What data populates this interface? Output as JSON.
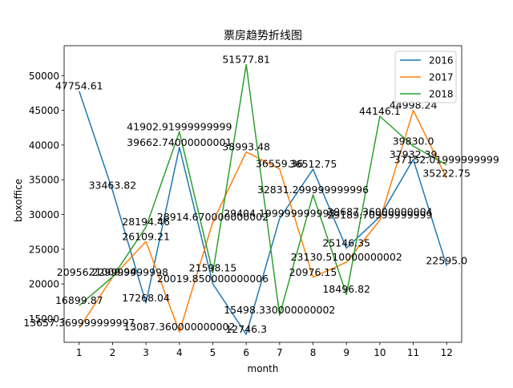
{
  "chart_data": {
    "type": "line",
    "title": "票房趋势折线图",
    "xlabel": "month",
    "ylabel": "boxoffice",
    "x": [
      1,
      2,
      3,
      4,
      5,
      6,
      7,
      8,
      9,
      10,
      11,
      12
    ],
    "xlim": [
      0.55,
      12.45
    ],
    "ylim": [
      11600,
      54300
    ],
    "yticks": [
      15000,
      20000,
      25000,
      30000,
      35000,
      40000,
      45000,
      50000
    ],
    "legend_position": "top-right",
    "grid": false,
    "series": [
      {
        "name": "2016",
        "color": "#1f77b4",
        "values": [
          47754.61,
          33463.82,
          17268.04,
          39662.74000000001,
          20019.850000000006,
          12746.3,
          29404.199999999993,
          36512.75,
          25146.35,
          29687.36000000004,
          37932.39,
          22595.0
        ],
        "labels": [
          "47754.61",
          "33463.82",
          "17268.04",
          "39662.74000000001",
          "20019.850000000006",
          "12746.3",
          "29404.199999999993",
          "36512.75",
          "25146.35",
          "29687.36000000004",
          "37932.39",
          "22595.0"
        ]
      },
      {
        "name": "2017",
        "color": "#ff7f0e",
        "values": [
          13657.369999999997,
          20956.23,
          26109.21,
          13087.360000000002,
          28914.670000000002,
          38993.48,
          36559.36,
          20976.15,
          23130.510000000002,
          29189.70999999999,
          44998.24,
          35222.75
        ],
        "labels": [
          "13657.369999999997",
          "20956.229999999998",
          "26109.21",
          "13087.360000000002",
          "28914.670000000002",
          "38993.48",
          "36559.36",
          "20976.15",
          "23130.510000000002",
          "29189.70999999999",
          "44998.24",
          "35222.75"
        ]
      },
      {
        "name": "2018",
        "color": "#2ca02c",
        "values": [
          16899.87,
          21009.94,
          28194.46,
          41902.91999999999,
          21598.15,
          51577.81,
          15498.330000000002,
          32831.299999999996,
          18496.82,
          44146.1,
          39830.0,
          37152.01999999999
        ],
        "labels": [
          "16899.87",
          "21009.94",
          "28194.46",
          "41902.91999999999",
          "21598.15",
          "51577.81",
          "15498.330000000002",
          "32831.299999999996",
          "18496.82",
          "44146.1",
          "39830.0",
          "37152.01999999999"
        ]
      }
    ]
  }
}
